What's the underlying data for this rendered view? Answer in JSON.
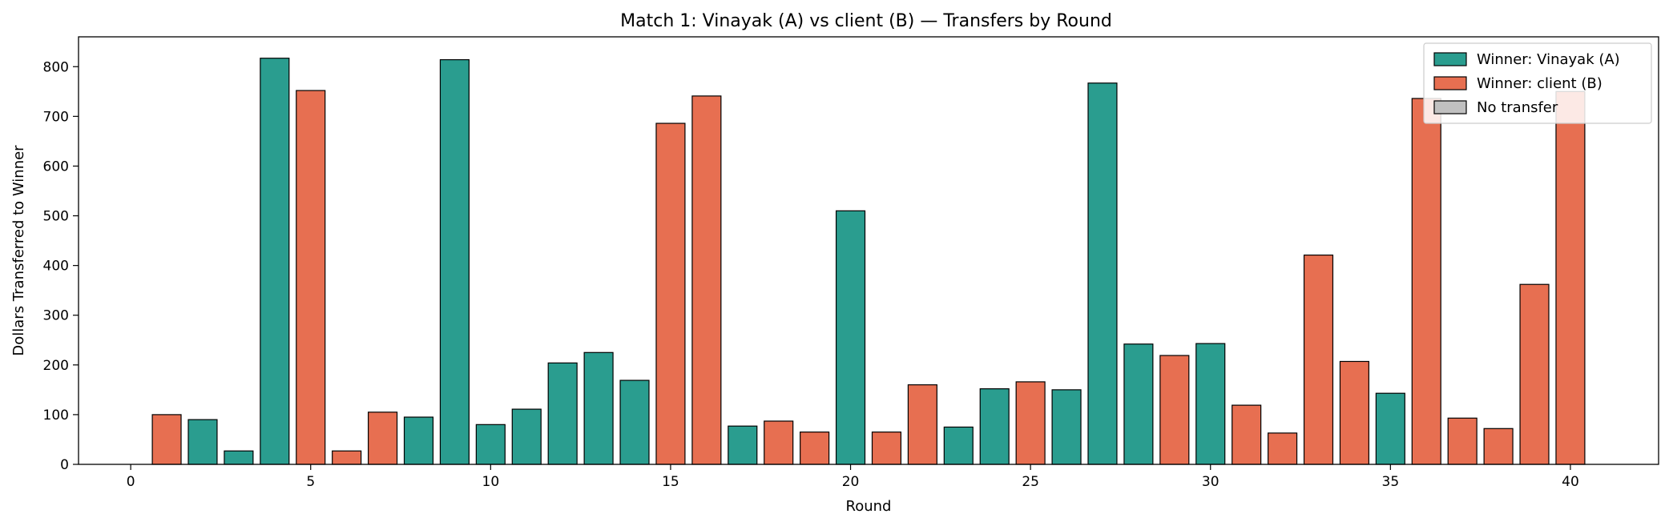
{
  "chart_data": {
    "type": "bar",
    "title": "Match 1: Vinayak (A) vs client (B) — Transfers by Round",
    "xlabel": "Round",
    "ylabel": "Dollars Transferred to Winner",
    "xlim": [
      -1.45,
      42.45
    ],
    "ylim": [
      0,
      860
    ],
    "xticks": [
      0,
      5,
      10,
      15,
      20,
      25,
      30,
      35,
      40
    ],
    "yticks": [
      0,
      100,
      200,
      300,
      400,
      500,
      600,
      700,
      800
    ],
    "grid": false,
    "legend_position": "top-right",
    "colors": {
      "A": "#2a9d8f",
      "B": "#e76f51",
      "none": "#c0c0c0"
    },
    "legend": [
      {
        "key": "A",
        "label": "Winner: Vinayak (A)"
      },
      {
        "key": "B",
        "label": "Winner: client (B)"
      },
      {
        "key": "none",
        "label": "No transfer"
      }
    ],
    "bars": [
      {
        "round": 1,
        "value": 100,
        "winner": "B"
      },
      {
        "round": 2,
        "value": 90,
        "winner": "A"
      },
      {
        "round": 3,
        "value": 27,
        "winner": "A"
      },
      {
        "round": 4,
        "value": 817,
        "winner": "A"
      },
      {
        "round": 5,
        "value": 752,
        "winner": "B"
      },
      {
        "round": 6,
        "value": 27,
        "winner": "B"
      },
      {
        "round": 7,
        "value": 105,
        "winner": "B"
      },
      {
        "round": 8,
        "value": 95,
        "winner": "A"
      },
      {
        "round": 9,
        "value": 814,
        "winner": "A"
      },
      {
        "round": 10,
        "value": 80,
        "winner": "A"
      },
      {
        "round": 11,
        "value": 111,
        "winner": "A"
      },
      {
        "round": 12,
        "value": 204,
        "winner": "A"
      },
      {
        "round": 13,
        "value": 225,
        "winner": "A"
      },
      {
        "round": 14,
        "value": 169,
        "winner": "A"
      },
      {
        "round": 15,
        "value": 686,
        "winner": "B"
      },
      {
        "round": 16,
        "value": 741,
        "winner": "B"
      },
      {
        "round": 17,
        "value": 77,
        "winner": "A"
      },
      {
        "round": 18,
        "value": 87,
        "winner": "B"
      },
      {
        "round": 19,
        "value": 65,
        "winner": "B"
      },
      {
        "round": 20,
        "value": 510,
        "winner": "A"
      },
      {
        "round": 21,
        "value": 65,
        "winner": "B"
      },
      {
        "round": 22,
        "value": 160,
        "winner": "B"
      },
      {
        "round": 23,
        "value": 75,
        "winner": "A"
      },
      {
        "round": 24,
        "value": 152,
        "winner": "A"
      },
      {
        "round": 25,
        "value": 166,
        "winner": "B"
      },
      {
        "round": 26,
        "value": 150,
        "winner": "A"
      },
      {
        "round": 27,
        "value": 767,
        "winner": "A"
      },
      {
        "round": 28,
        "value": 242,
        "winner": "A"
      },
      {
        "round": 29,
        "value": 219,
        "winner": "B"
      },
      {
        "round": 30,
        "value": 243,
        "winner": "A"
      },
      {
        "round": 31,
        "value": 119,
        "winner": "B"
      },
      {
        "round": 32,
        "value": 63,
        "winner": "B"
      },
      {
        "round": 33,
        "value": 421,
        "winner": "B"
      },
      {
        "round": 34,
        "value": 207,
        "winner": "B"
      },
      {
        "round": 35,
        "value": 143,
        "winner": "A"
      },
      {
        "round": 36,
        "value": 736,
        "winner": "B"
      },
      {
        "round": 37,
        "value": 93,
        "winner": "B"
      },
      {
        "round": 38,
        "value": 72,
        "winner": "B"
      },
      {
        "round": 39,
        "value": 362,
        "winner": "B"
      },
      {
        "round": 40,
        "value": 750,
        "winner": "B"
      }
    ]
  }
}
